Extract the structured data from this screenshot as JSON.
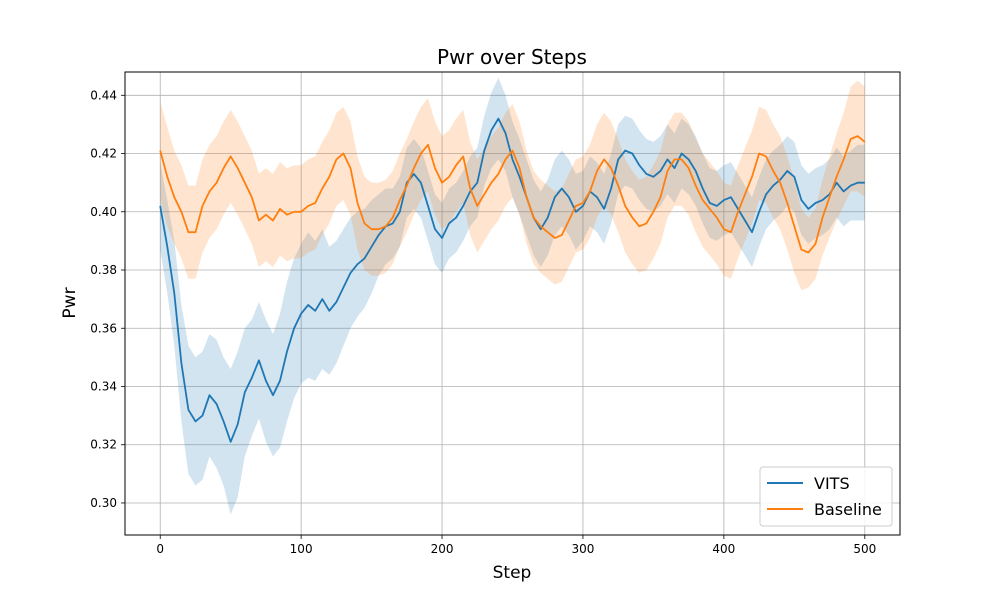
{
  "chart_data": {
    "type": "line",
    "title": "Pwr over Steps",
    "xlabel": "Step",
    "ylabel": "Pwr",
    "xlim": [
      -25,
      525
    ],
    "ylim": [
      0.289,
      0.448
    ],
    "xticks": [
      0,
      100,
      200,
      300,
      400,
      500
    ],
    "yticks": [
      0.3,
      0.32,
      0.34,
      0.36,
      0.38,
      0.4,
      0.42,
      0.44
    ],
    "xtick_labels": [
      "0",
      "100",
      "200",
      "300",
      "400",
      "500"
    ],
    "ytick_labels": [
      "0.30",
      "0.32",
      "0.34",
      "0.36",
      "0.38",
      "0.40",
      "0.42",
      "0.44"
    ],
    "grid": true,
    "legend_position": "lower-right",
    "series": [
      {
        "name": "VITS",
        "color": "#1f77b4",
        "band_color": "#1f77b4",
        "x": [
          0,
          5,
          10,
          15,
          20,
          25,
          30,
          35,
          40,
          45,
          50,
          55,
          60,
          65,
          70,
          75,
          80,
          85,
          90,
          95,
          100,
          105,
          110,
          115,
          120,
          125,
          130,
          135,
          140,
          145,
          150,
          155,
          160,
          165,
          170,
          175,
          180,
          185,
          190,
          195,
          200,
          205,
          210,
          215,
          220,
          225,
          230,
          235,
          240,
          245,
          250,
          255,
          260,
          265,
          270,
          275,
          280,
          285,
          290,
          295,
          300,
          305,
          310,
          315,
          320,
          325,
          330,
          335,
          340,
          345,
          350,
          355,
          360,
          365,
          370,
          375,
          380,
          385,
          390,
          395,
          400,
          405,
          410,
          415,
          420,
          425,
          430,
          435,
          440,
          445,
          450,
          455,
          460,
          465,
          470,
          475,
          480,
          485,
          490,
          495,
          500
        ],
        "y": [
          0.402,
          0.388,
          0.372,
          0.348,
          0.332,
          0.328,
          0.33,
          0.337,
          0.334,
          0.328,
          0.321,
          0.327,
          0.338,
          0.343,
          0.349,
          0.342,
          0.337,
          0.342,
          0.352,
          0.36,
          0.365,
          0.368,
          0.366,
          0.37,
          0.366,
          0.369,
          0.374,
          0.379,
          0.382,
          0.384,
          0.388,
          0.392,
          0.395,
          0.396,
          0.4,
          0.41,
          0.413,
          0.41,
          0.402,
          0.394,
          0.391,
          0.396,
          0.398,
          0.402,
          0.407,
          0.41,
          0.421,
          0.428,
          0.432,
          0.427,
          0.418,
          0.412,
          0.405,
          0.398,
          0.394,
          0.398,
          0.405,
          0.408,
          0.405,
          0.4,
          0.402,
          0.407,
          0.405,
          0.401,
          0.408,
          0.418,
          0.421,
          0.42,
          0.416,
          0.413,
          0.412,
          0.414,
          0.418,
          0.415,
          0.42,
          0.418,
          0.414,
          0.408,
          0.403,
          0.402,
          0.404,
          0.405,
          0.401,
          0.397,
          0.393,
          0.4,
          0.406,
          0.409,
          0.411,
          0.414,
          0.412,
          0.404,
          0.401,
          0.403,
          0.404,
          0.406,
          0.41,
          0.407,
          0.409,
          0.41,
          0.41
        ],
        "band": [
          0.015,
          0.016,
          0.018,
          0.02,
          0.022,
          0.022,
          0.022,
          0.021,
          0.022,
          0.022,
          0.025,
          0.025,
          0.022,
          0.02,
          0.02,
          0.021,
          0.021,
          0.023,
          0.024,
          0.024,
          0.024,
          0.025,
          0.024,
          0.024,
          0.022,
          0.021,
          0.02,
          0.019,
          0.018,
          0.017,
          0.016,
          0.014,
          0.013,
          0.012,
          0.012,
          0.012,
          0.012,
          0.012,
          0.012,
          0.012,
          0.012,
          0.012,
          0.012,
          0.012,
          0.012,
          0.012,
          0.012,
          0.013,
          0.014,
          0.013,
          0.013,
          0.013,
          0.013,
          0.013,
          0.013,
          0.013,
          0.013,
          0.013,
          0.013,
          0.013,
          0.012,
          0.012,
          0.012,
          0.012,
          0.012,
          0.012,
          0.012,
          0.012,
          0.012,
          0.012,
          0.012,
          0.012,
          0.012,
          0.012,
          0.012,
          0.012,
          0.012,
          0.012,
          0.012,
          0.012,
          0.012,
          0.012,
          0.012,
          0.012,
          0.012,
          0.012,
          0.012,
          0.012,
          0.012,
          0.012,
          0.012,
          0.012,
          0.012,
          0.012,
          0.012,
          0.012,
          0.012,
          0.012,
          0.012,
          0.013,
          0.013
        ]
      },
      {
        "name": "Baseline",
        "color": "#ff7f0e",
        "band_color": "#ff7f0e",
        "x": [
          0,
          5,
          10,
          15,
          20,
          25,
          30,
          35,
          40,
          45,
          50,
          55,
          60,
          65,
          70,
          75,
          80,
          85,
          90,
          95,
          100,
          105,
          110,
          115,
          120,
          125,
          130,
          135,
          140,
          145,
          150,
          155,
          160,
          165,
          170,
          175,
          180,
          185,
          190,
          195,
          200,
          205,
          210,
          215,
          220,
          225,
          230,
          235,
          240,
          245,
          250,
          255,
          260,
          265,
          270,
          275,
          280,
          285,
          290,
          295,
          300,
          305,
          310,
          315,
          320,
          325,
          330,
          335,
          340,
          345,
          350,
          355,
          360,
          365,
          370,
          375,
          380,
          385,
          390,
          395,
          400,
          405,
          410,
          415,
          420,
          425,
          430,
          435,
          440,
          445,
          450,
          455,
          460,
          465,
          470,
          475,
          480,
          485,
          490,
          495,
          500
        ],
        "y": [
          0.421,
          0.412,
          0.405,
          0.4,
          0.393,
          0.393,
          0.402,
          0.407,
          0.41,
          0.415,
          0.419,
          0.415,
          0.41,
          0.405,
          0.397,
          0.399,
          0.397,
          0.401,
          0.399,
          0.4,
          0.4,
          0.402,
          0.403,
          0.408,
          0.412,
          0.418,
          0.42,
          0.415,
          0.403,
          0.396,
          0.394,
          0.394,
          0.395,
          0.398,
          0.404,
          0.409,
          0.415,
          0.42,
          0.423,
          0.415,
          0.41,
          0.412,
          0.416,
          0.419,
          0.408,
          0.402,
          0.406,
          0.41,
          0.413,
          0.418,
          0.421,
          0.415,
          0.405,
          0.398,
          0.395,
          0.393,
          0.391,
          0.392,
          0.397,
          0.402,
          0.403,
          0.407,
          0.414,
          0.418,
          0.415,
          0.409,
          0.402,
          0.398,
          0.395,
          0.396,
          0.4,
          0.405,
          0.414,
          0.418,
          0.418,
          0.415,
          0.409,
          0.404,
          0.401,
          0.398,
          0.394,
          0.393,
          0.4,
          0.406,
          0.412,
          0.42,
          0.419,
          0.414,
          0.41,
          0.403,
          0.395,
          0.387,
          0.386,
          0.389,
          0.398,
          0.405,
          0.412,
          0.418,
          0.425,
          0.426,
          0.424
        ],
        "band": [
          0.017,
          0.017,
          0.016,
          0.016,
          0.016,
          0.016,
          0.016,
          0.016,
          0.016,
          0.016,
          0.016,
          0.016,
          0.016,
          0.016,
          0.016,
          0.016,
          0.016,
          0.016,
          0.016,
          0.016,
          0.016,
          0.016,
          0.016,
          0.016,
          0.016,
          0.016,
          0.016,
          0.016,
          0.016,
          0.016,
          0.016,
          0.016,
          0.016,
          0.016,
          0.016,
          0.016,
          0.016,
          0.016,
          0.016,
          0.016,
          0.016,
          0.016,
          0.016,
          0.016,
          0.016,
          0.016,
          0.016,
          0.016,
          0.016,
          0.016,
          0.016,
          0.016,
          0.016,
          0.016,
          0.016,
          0.016,
          0.016,
          0.016,
          0.016,
          0.016,
          0.016,
          0.016,
          0.016,
          0.016,
          0.016,
          0.016,
          0.016,
          0.016,
          0.016,
          0.016,
          0.016,
          0.016,
          0.016,
          0.016,
          0.016,
          0.016,
          0.016,
          0.016,
          0.016,
          0.016,
          0.016,
          0.016,
          0.016,
          0.016,
          0.016,
          0.016,
          0.016,
          0.016,
          0.016,
          0.016,
          0.016,
          0.014,
          0.012,
          0.012,
          0.013,
          0.014,
          0.015,
          0.016,
          0.018,
          0.019,
          0.019
        ]
      }
    ]
  }
}
